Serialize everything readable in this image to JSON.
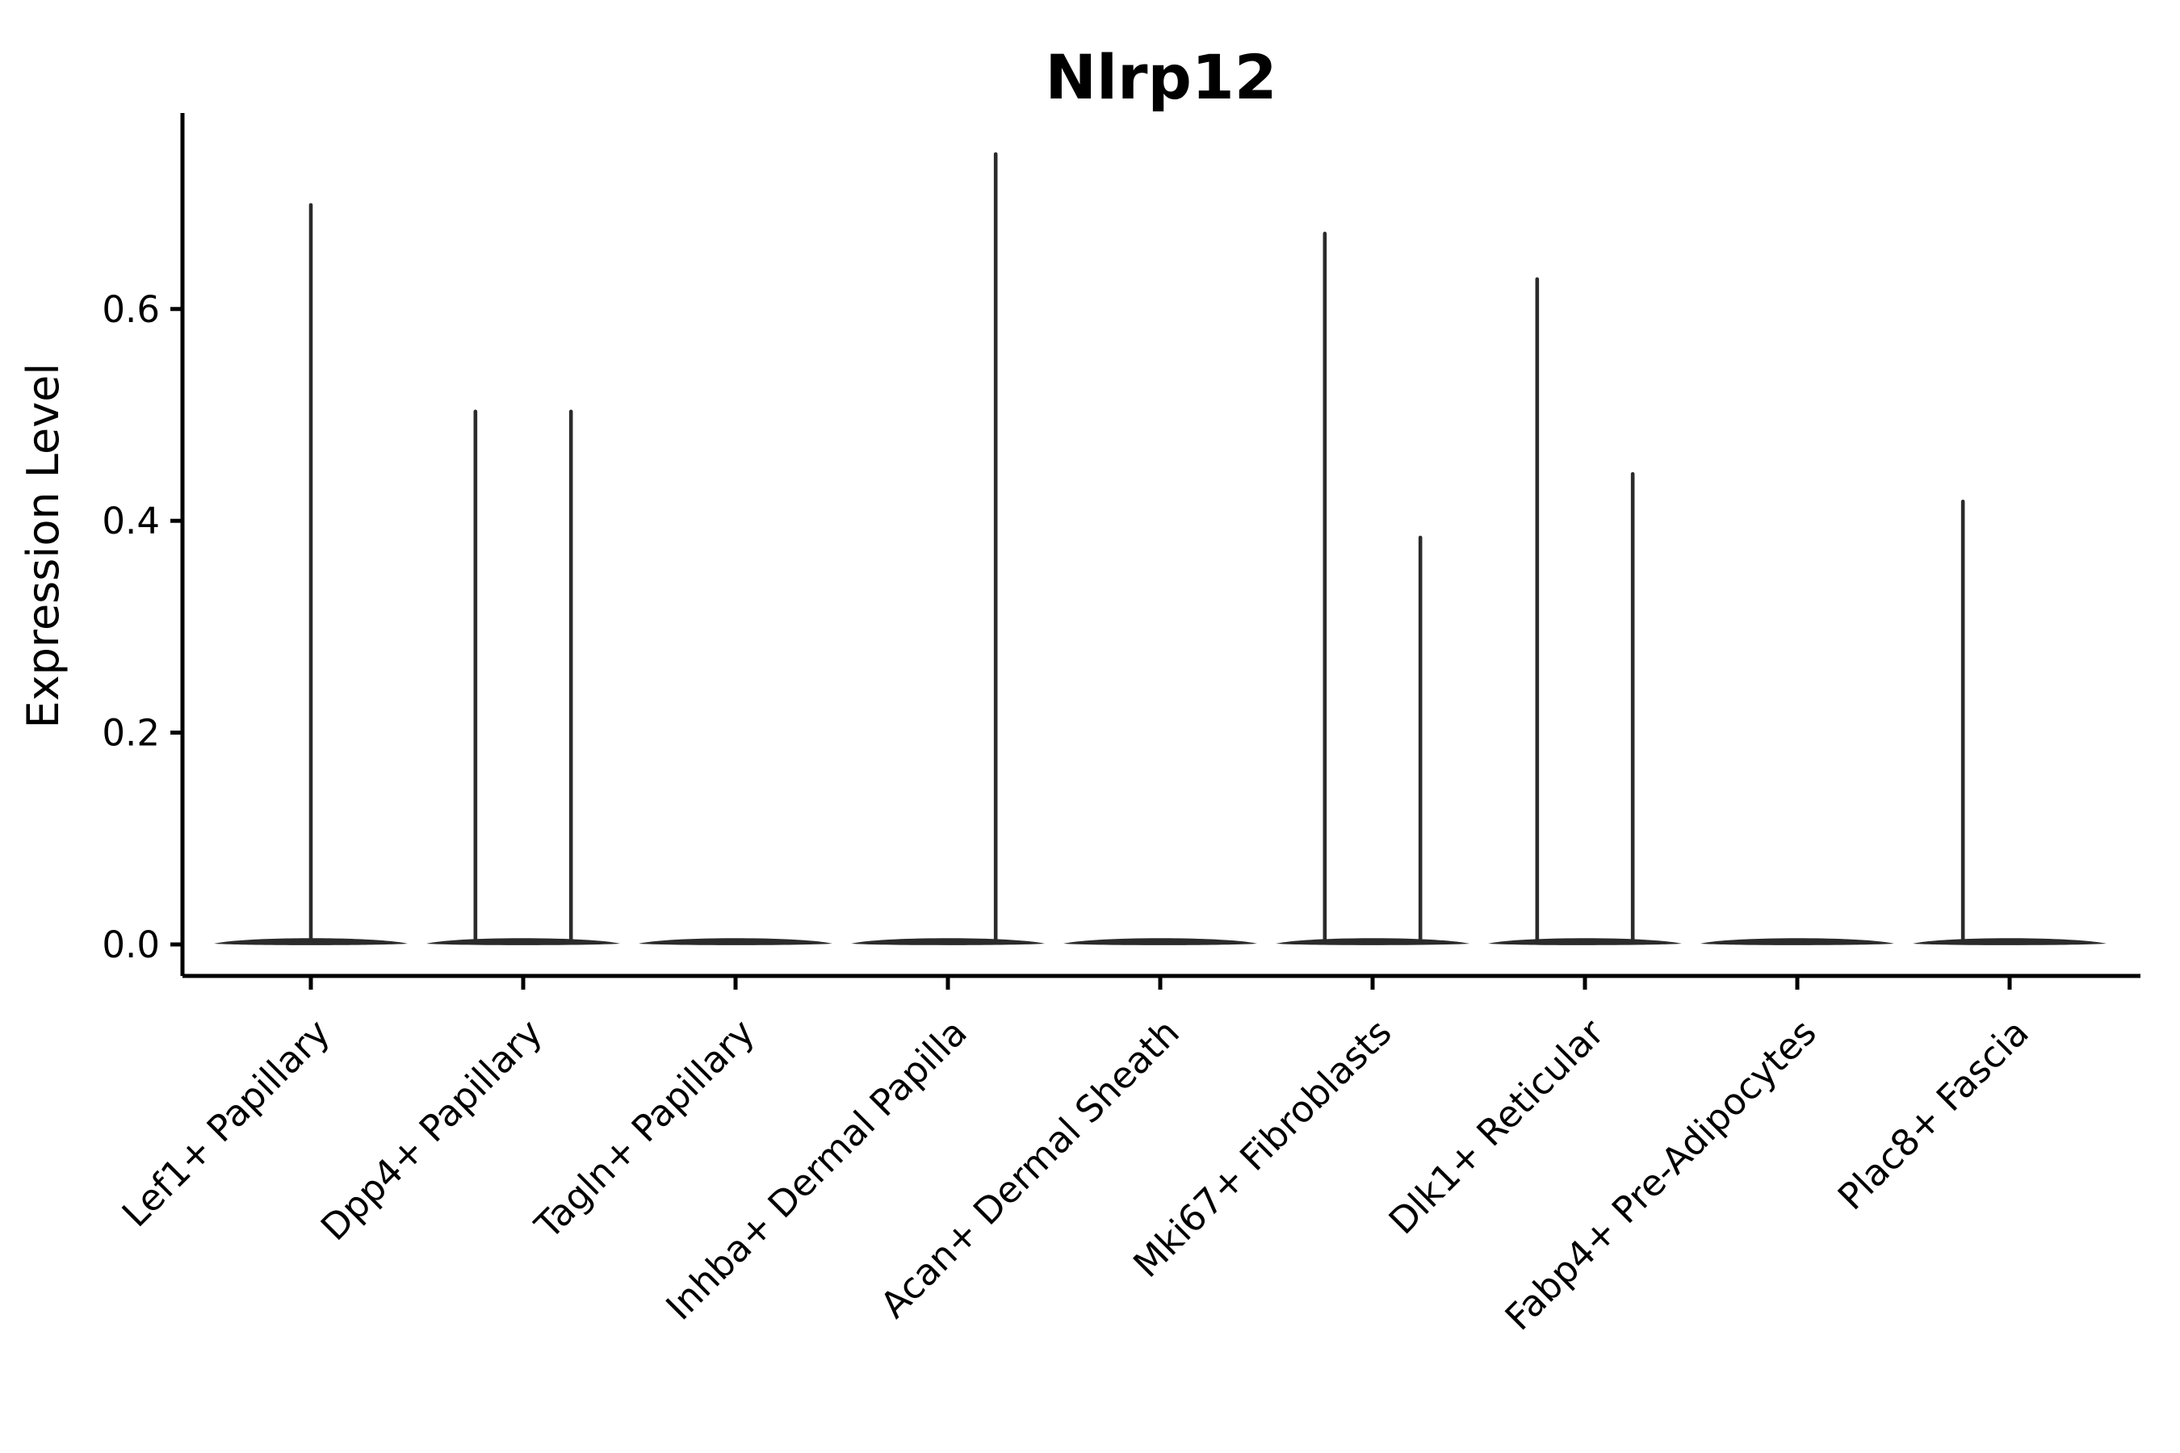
{
  "chart_data": {
    "type": "violin",
    "title": "Nlrp12",
    "ylabel": "Expression Level",
    "xlabel": "",
    "legend": "none",
    "grid": false,
    "ylim": [
      -0.03,
      0.785
    ],
    "y_ticks": [
      {
        "label": "0.0",
        "value": 0.0
      },
      {
        "label": "0.2",
        "value": 0.2
      },
      {
        "label": "0.4",
        "value": 0.4
      },
      {
        "label": "0.6",
        "value": 0.6
      }
    ],
    "style_note": "Seurat-style single-gene violin plot: each cell type shows a flat near-zero density lens at 0 with thin vertical spikes reaching the maximum expression of rare expressing cells",
    "colors": {
      "violin": "#2b2b2b",
      "axis": "#000000",
      "text": "#000000",
      "background": "#ffffff"
    },
    "categories": [
      {
        "label": "Lef1+ Papillary",
        "baseline_at_zero": true,
        "spikes": [
          {
            "offset": 0.0,
            "max": 0.7
          }
        ]
      },
      {
        "label": "Dpp4+ Papillary",
        "baseline_at_zero": true,
        "spikes": [
          {
            "offset": -0.225,
            "max": 0.505
          },
          {
            "offset": 0.225,
            "max": 0.505
          }
        ]
      },
      {
        "label": "Tagln+ Papillary",
        "baseline_at_zero": true,
        "spikes": []
      },
      {
        "label": "Inhba+ Dermal Papilla",
        "baseline_at_zero": true,
        "spikes": [
          {
            "offset": 0.225,
            "max": 0.748
          }
        ]
      },
      {
        "label": "Acan+ Dermal Sheath",
        "baseline_at_zero": true,
        "spikes": []
      },
      {
        "label": "Mki67+ Fibroblasts",
        "baseline_at_zero": true,
        "spikes": [
          {
            "offset": -0.225,
            "max": 0.673
          },
          {
            "offset": 0.225,
            "max": 0.386
          }
        ]
      },
      {
        "label": "Dlk1+ Reticular",
        "baseline_at_zero": true,
        "spikes": [
          {
            "offset": -0.225,
            "max": 0.63
          },
          {
            "offset": 0.225,
            "max": 0.446
          }
        ]
      },
      {
        "label": "Fabp4+ Pre-Adipocytes",
        "baseline_at_zero": true,
        "spikes": []
      },
      {
        "label": "Plac8+ Fascia",
        "baseline_at_zero": true,
        "spikes": [
          {
            "offset": -0.22,
            "max": 0.42
          }
        ]
      }
    ]
  }
}
